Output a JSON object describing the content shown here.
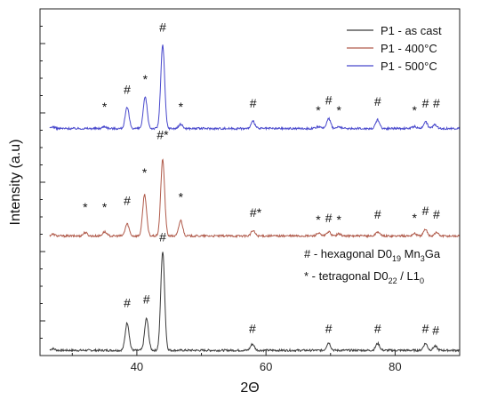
{
  "chart_data": {
    "type": "line",
    "xlabel": "2Θ",
    "ylabel": "Intensity (a.u)",
    "xlim": [
      25,
      90
    ],
    "ylim": [
      0,
      10
    ],
    "x_ticks": [
      40,
      60,
      80
    ],
    "y_ticks_note": "unlabeled",
    "legend_position": "top-right",
    "series": [
      {
        "name": "P1 - as cast",
        "color": "#3a3a3a",
        "baseline": 0.15,
        "peaks": [
          {
            "x": 27.0,
            "h": 0.05
          },
          {
            "x": 38.5,
            "h": 0.8
          },
          {
            "x": 41.5,
            "h": 0.92
          },
          {
            "x": 44.0,
            "h": 2.85
          },
          {
            "x": 57.9,
            "h": 0.18
          },
          {
            "x": 69.7,
            "h": 0.22
          },
          {
            "x": 77.3,
            "h": 0.2
          },
          {
            "x": 84.7,
            "h": 0.2
          },
          {
            "x": 86.2,
            "h": 0.12
          }
        ]
      },
      {
        "name": "P1 - 400°C",
        "color": "#b05a4a",
        "baseline": 3.45,
        "peaks": [
          {
            "x": 27.0,
            "h": 0.05
          },
          {
            "x": 32.0,
            "h": 0.1
          },
          {
            "x": 35.0,
            "h": 0.12
          },
          {
            "x": 38.5,
            "h": 0.35
          },
          {
            "x": 41.2,
            "h": 1.2
          },
          {
            "x": 44.0,
            "h": 2.2
          },
          {
            "x": 46.8,
            "h": 0.45
          },
          {
            "x": 58.0,
            "h": 0.15
          },
          {
            "x": 68.1,
            "h": 0.08
          },
          {
            "x": 69.7,
            "h": 0.12
          },
          {
            "x": 71.3,
            "h": 0.06
          },
          {
            "x": 77.3,
            "h": 0.12
          },
          {
            "x": 83.0,
            "h": 0.07
          },
          {
            "x": 84.7,
            "h": 0.18
          },
          {
            "x": 86.4,
            "h": 0.1
          }
        ]
      },
      {
        "name": "P1 - 500°C",
        "color": "#4848cc",
        "baseline": 6.55,
        "peaks": [
          {
            "x": 27.0,
            "h": 0.05
          },
          {
            "x": 35.0,
            "h": 0.06
          },
          {
            "x": 38.5,
            "h": 0.6
          },
          {
            "x": 41.3,
            "h": 0.9
          },
          {
            "x": 44.0,
            "h": 2.4
          },
          {
            "x": 46.8,
            "h": 0.12
          },
          {
            "x": 58.0,
            "h": 0.2
          },
          {
            "x": 68.1,
            "h": 0.05
          },
          {
            "x": 69.7,
            "h": 0.3
          },
          {
            "x": 71.3,
            "h": 0.05
          },
          {
            "x": 77.3,
            "h": 0.25
          },
          {
            "x": 83.0,
            "h": 0.06
          },
          {
            "x": 84.7,
            "h": 0.2
          },
          {
            "x": 86.2,
            "h": 0.12
          }
        ]
      }
    ],
    "annotations": [
      {
        "text": "#",
        "x": 38.5,
        "y": 1.4
      },
      {
        "text": "#",
        "x": 41.5,
        "y": 1.5
      },
      {
        "text": "#",
        "x": 44.0,
        "y": 3.3
      },
      {
        "text": "#",
        "x": 57.9,
        "y": 0.65
      },
      {
        "text": "#",
        "x": 69.7,
        "y": 0.65
      },
      {
        "text": "#",
        "x": 77.3,
        "y": 0.65
      },
      {
        "text": "#",
        "x": 84.7,
        "y": 0.65
      },
      {
        "text": "#",
        "x": 86.3,
        "y": 0.6
      },
      {
        "text": "*",
        "x": 32.0,
        "y": 4.15
      },
      {
        "text": "*",
        "x": 35.0,
        "y": 4.15
      },
      {
        "text": "#",
        "x": 38.5,
        "y": 4.35
      },
      {
        "text": "*",
        "x": 41.2,
        "y": 5.15
      },
      {
        "text": "#*",
        "x": 44.0,
        "y": 6.25
      },
      {
        "text": "*",
        "x": 46.8,
        "y": 4.45
      },
      {
        "text": "#*",
        "x": 58.4,
        "y": 4.0
      },
      {
        "text": "*",
        "x": 68.1,
        "y": 3.8
      },
      {
        "text": "#",
        "x": 69.7,
        "y": 3.85
      },
      {
        "text": "*",
        "x": 71.3,
        "y": 3.8
      },
      {
        "text": "#",
        "x": 77.3,
        "y": 3.95
      },
      {
        "text": "*",
        "x": 83.0,
        "y": 3.85
      },
      {
        "text": "#",
        "x": 84.7,
        "y": 4.05
      },
      {
        "text": "#",
        "x": 86.4,
        "y": 3.95
      },
      {
        "text": "*",
        "x": 35.0,
        "y": 7.05
      },
      {
        "text": "#",
        "x": 38.5,
        "y": 7.55
      },
      {
        "text": "*",
        "x": 41.3,
        "y": 7.85
      },
      {
        "text": "#",
        "x": 44.0,
        "y": 9.35
      },
      {
        "text": "*",
        "x": 46.8,
        "y": 7.05
      },
      {
        "text": "#",
        "x": 58.0,
        "y": 7.15
      },
      {
        "text": "*",
        "x": 68.1,
        "y": 6.95
      },
      {
        "text": "#",
        "x": 69.7,
        "y": 7.25
      },
      {
        "text": "*",
        "x": 71.3,
        "y": 6.95
      },
      {
        "text": "#",
        "x": 77.3,
        "y": 7.2
      },
      {
        "text": "*",
        "x": 83.0,
        "y": 6.95
      },
      {
        "text": "#",
        "x": 84.7,
        "y": 7.15
      },
      {
        "text": "#",
        "x": 86.4,
        "y": 7.15
      }
    ],
    "key": [
      {
        "symbol": "#",
        "text": "- hexagonal D0",
        "sub": "19",
        "tail": " Mn",
        "sub2": "3",
        "tail2": "Ga"
      },
      {
        "symbol": "*",
        "text": "- tetragonal D0",
        "sub": "22",
        "tail": " / L1",
        "sub2": "0",
        "tail2": ""
      }
    ]
  }
}
